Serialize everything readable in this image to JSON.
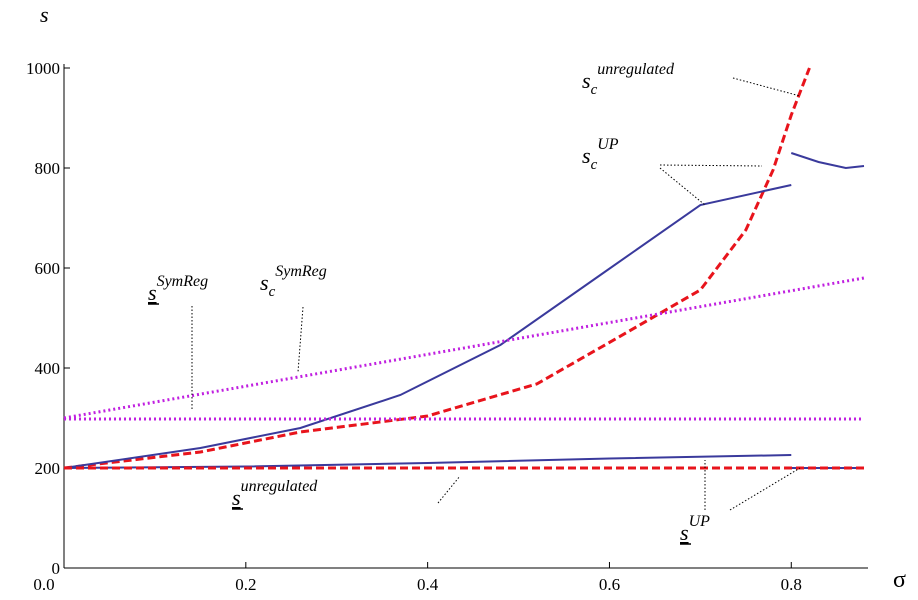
{
  "chart_data": {
    "type": "line",
    "ylabel": "s",
    "xlabel": "σ",
    "xlim": [
      0,
      0.88
    ],
    "ylim": [
      0,
      1000
    ],
    "xticks": [
      {
        "value": 0,
        "label": "0.0"
      },
      0.2,
      0.4,
      0.6,
      0.8
    ],
    "yticks": [
      0,
      200,
      400,
      600,
      800,
      1000
    ],
    "grid": false,
    "series": [
      {
        "color": "#e8141c",
        "dash": "dashed",
        "x": [
          0,
          0.15,
          0.26,
          0.4,
          0.52,
          0.62,
          0.7,
          0.75,
          0.78,
          0.8,
          0.82
        ],
        "values": [
          200,
          232,
          272,
          304,
          368,
          472,
          556,
          676,
          796,
          906,
          1000
        ]
      },
      {
        "color": "#3a3a9c",
        "dash": "solid",
        "x": [
          0,
          0.15,
          0.26,
          0.37,
          0.48,
          0.59,
          0.7,
          0.8
        ],
        "values": [
          200,
          240,
          280,
          346,
          446,
          586,
          726,
          766
        ]
      },
      {
        "color": "#3a3a9c",
        "dash": "solid",
        "x": [
          0.8,
          0.83,
          0.86,
          0.88
        ],
        "values": [
          830,
          812,
          800,
          804
        ]
      },
      {
        "color": "#3a3a9c",
        "dash": "solid",
        "x": [
          0,
          0.2,
          0.4,
          0.6,
          0.8
        ],
        "values": [
          200,
          203,
          210,
          219,
          226
        ]
      },
      {
        "color": "#3a3a9c",
        "dash": "solid",
        "x": [
          0.8,
          0.88
        ],
        "values": [
          200,
          200
        ]
      },
      {
        "color": "#e8141c",
        "dash": "dashed",
        "x": [
          0,
          0.88
        ],
        "values": [
          200,
          200
        ]
      },
      {
        "color": "#c020e0",
        "dash": "dotted",
        "x": [
          0,
          0.88
        ],
        "values": [
          300,
          580
        ]
      },
      {
        "color": "#c020e0",
        "dash": "dotted",
        "x": [
          0,
          0.88
        ],
        "values": [
          298,
          298
        ]
      }
    ],
    "annotations": [
      {
        "base": "s",
        "sub": "c",
        "sup": "unregulated",
        "underline": false
      },
      {
        "base": "s",
        "sub": "c",
        "sup": "UP",
        "underline": false
      },
      {
        "base": "s",
        "sup": "SymReg",
        "underline": true
      },
      {
        "base": "s",
        "sub": "c",
        "sup": "SymReg",
        "underline": false
      },
      {
        "base": "s",
        "sup": "unregulated",
        "underline": true
      },
      {
        "base": "s",
        "sup": "UP",
        "underline": true
      }
    ]
  }
}
